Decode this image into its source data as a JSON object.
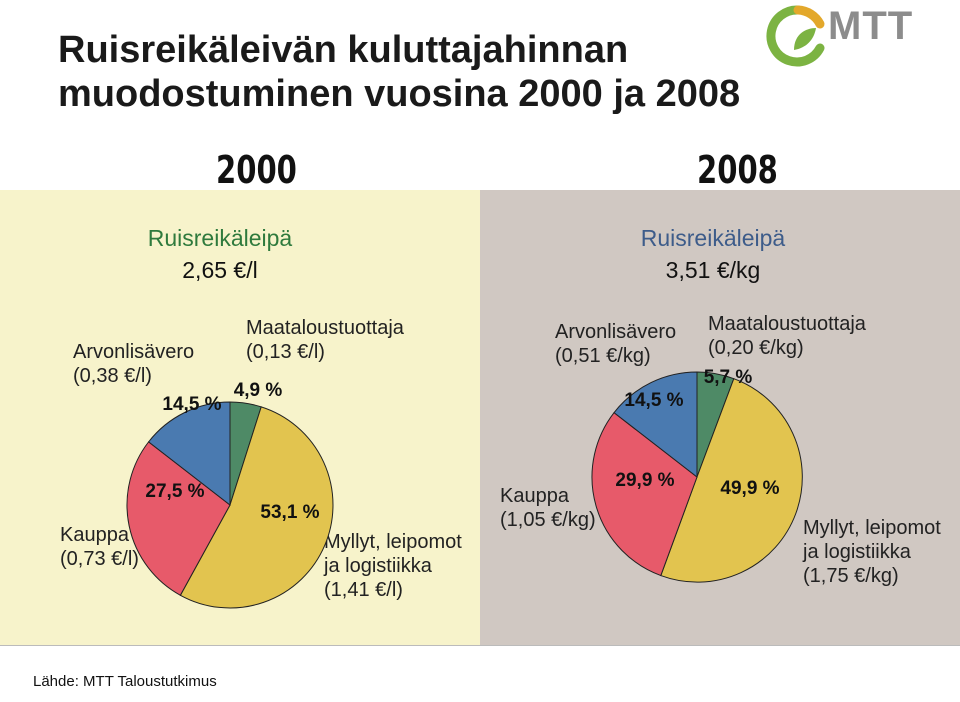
{
  "title_line1": "Ruisreikäleivän kuluttajahinnan",
  "title_line2": "muodostuminen vuosina 2000 ja 2008",
  "logo_text": "MTT",
  "source": "Lähde: MTT Taloustutkimus",
  "colors": {
    "vat": "#4a7ab0",
    "farmer": "#4e8a66",
    "mill": "#e2c44f",
    "shop": "#e75a6a",
    "left_bg": "#f7f3cb",
    "right_bg": "#d0c8c2"
  },
  "chart_data": [
    {
      "type": "pie",
      "year": "2000",
      "title": "Ruisreikäleipä",
      "price": "2,65 €/l",
      "slices": [
        {
          "key": "farmer",
          "pct": 4.9,
          "pct_label": "4,9 %",
          "label_line1": "Maataloustuottaja",
          "label_line2": "(0,13 €/l)",
          "label_line3": ""
        },
        {
          "key": "mill",
          "pct": 53.1,
          "pct_label": "53,1 %",
          "label_line1": "Myllyt, leipomot",
          "label_line2": "ja logistiikka",
          "label_line3": "(1,41 €/l)"
        },
        {
          "key": "shop",
          "pct": 27.5,
          "pct_label": "27,5 %",
          "label_line1": "Kauppa",
          "label_line2": "(0,73 €/l)",
          "label_line3": ""
        },
        {
          "key": "vat",
          "pct": 14.5,
          "pct_label": "14,5 %",
          "label_line1": "Arvonlisävero",
          "label_line2": "(0,38 €/l)",
          "label_line3": ""
        }
      ]
    },
    {
      "type": "pie",
      "year": "2008",
      "title": "Ruisreikäleipä",
      "price": "3,51 €/kg",
      "slices": [
        {
          "key": "farmer",
          "pct": 5.7,
          "pct_label": "5,7 %",
          "label_line1": "Maataloustuottaja",
          "label_line2": "(0,20 €/kg)",
          "label_line3": ""
        },
        {
          "key": "mill",
          "pct": 49.9,
          "pct_label": "49,9 %",
          "label_line1": "Myllyt, leipomot",
          "label_line2": "ja logistiikka",
          "label_line3": "(1,75 €/kg)"
        },
        {
          "key": "shop",
          "pct": 29.9,
          "pct_label": "29,9 %",
          "label_line1": "Kauppa",
          "label_line2": "(1,05 €/kg)",
          "label_line3": ""
        },
        {
          "key": "vat",
          "pct": 14.5,
          "pct_label": "14,5 %",
          "label_line1": "Arvonlisävero",
          "label_line2": "(0,51 €/kg)",
          "label_line3": ""
        }
      ]
    }
  ]
}
